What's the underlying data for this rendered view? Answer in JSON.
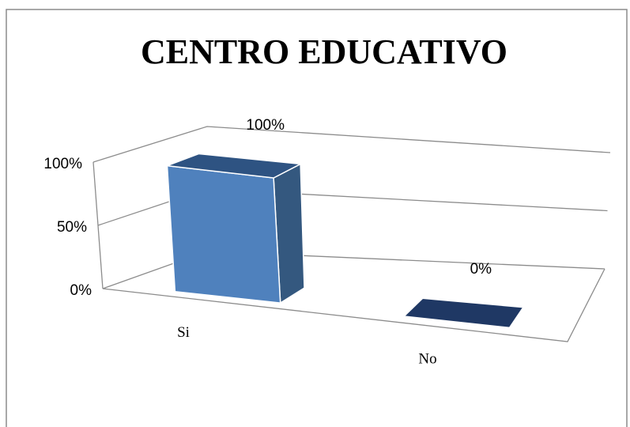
{
  "chart_data": {
    "type": "bar3d",
    "title": "CENTRO EDUCATIVO",
    "categories": [
      "Si",
      "No"
    ],
    "values": [
      100,
      0
    ],
    "value_labels": [
      "100%",
      "0%"
    ],
    "ylim": [
      0,
      100
    ],
    "yticks": [
      {
        "value": 0,
        "label": "0%"
      },
      {
        "value": 50,
        "label": "50%"
      },
      {
        "value": 100,
        "label": "100%"
      }
    ],
    "grid": true
  }
}
